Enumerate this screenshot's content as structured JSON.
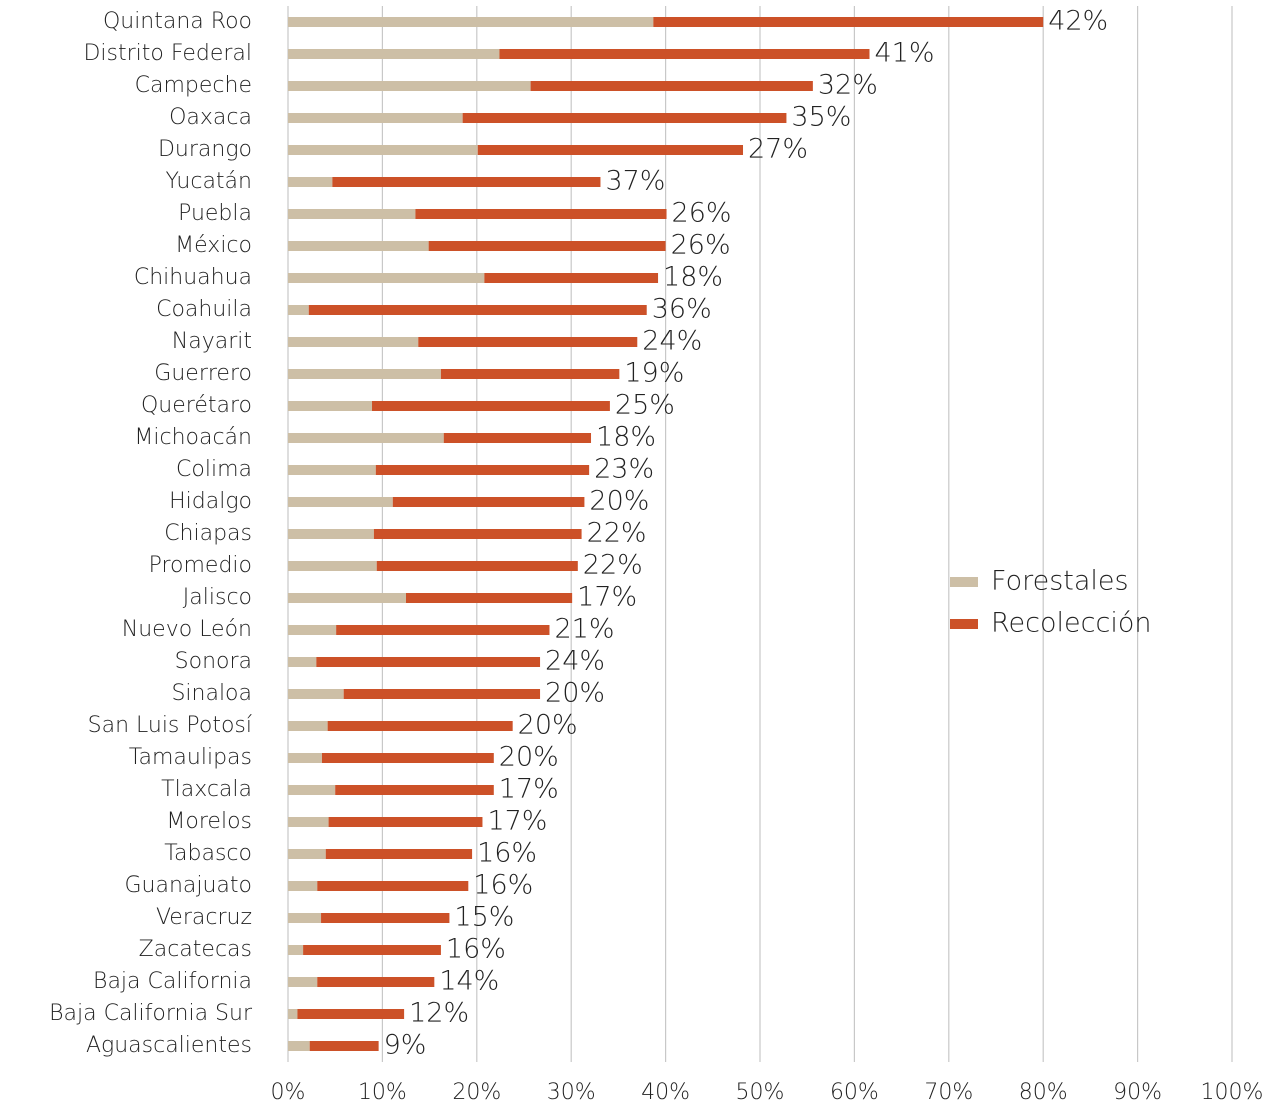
{
  "chart_data": {
    "type": "stacked-barh",
    "categories": [
      "Quintana Roo",
      "Distrito Federal",
      "Campeche",
      "Oaxaca",
      "Durango",
      "Yucatán",
      "Puebla",
      "México",
      "Chihuahua",
      "Coahuila",
      "Nayarit",
      "Guerrero",
      "Querétaro",
      "Michoacán",
      "Colima",
      "Hidalgo",
      "Chiapas",
      "Promedio",
      "Jalisco",
      "Nuevo León",
      "Sonora",
      "Sinaloa",
      "San Luis Potosí",
      "Tamaulipas",
      "Tlaxcala",
      "Morelos",
      "Tabasco",
      "Guanajuato",
      "Veracruz",
      "Zacatecas",
      "Baja California",
      "Baja California Sur",
      "Aguascalientes"
    ],
    "series": [
      {
        "name": "Forestales",
        "color": "#cdbfa6",
        "values": [
          38.7,
          22.4,
          25.7,
          18.5,
          20.1,
          4.7,
          13.5,
          14.9,
          20.8,
          2.2,
          13.8,
          16.2,
          8.9,
          16.5,
          9.3,
          11.1,
          9.1,
          9.4,
          12.5,
          5.1,
          3.0,
          5.9,
          4.2,
          3.6,
          5.0,
          4.3,
          4.0,
          3.1,
          3.5,
          1.6,
          3.1,
          1.0,
          2.3
        ]
      },
      {
        "name": "Recolección",
        "color": "#cc5128",
        "values": [
          41.3,
          39.2,
          29.9,
          34.3,
          28.1,
          28.4,
          26.6,
          25.1,
          18.4,
          35.8,
          23.2,
          18.9,
          25.2,
          15.6,
          22.6,
          20.3,
          22.0,
          21.3,
          17.6,
          22.6,
          23.7,
          20.8,
          19.6,
          18.2,
          16.8,
          16.3,
          15.5,
          16.0,
          13.6,
          14.6,
          12.4,
          11.3,
          7.3
        ]
      }
    ],
    "annotations": [
      "42%",
      "41%",
      "32%",
      "35%",
      "27%",
      "37%",
      "26%",
      "26%",
      "18%",
      "36%",
      "24%",
      "19%",
      "25%",
      "18%",
      "23%",
      "20%",
      "22%",
      "22%",
      "17%",
      "21%",
      "24%",
      "20%",
      "20%",
      "20%",
      "17%",
      "17%",
      "16%",
      "16%",
      "15%",
      "16%",
      "14%",
      "12%",
      "9%"
    ],
    "xlim": [
      0,
      100
    ],
    "xticks": [
      {
        "value": 0,
        "label": "0%"
      },
      {
        "value": 10,
        "label": "10%"
      },
      {
        "value": 20,
        "label": "20%"
      },
      {
        "value": 30,
        "label": "30%"
      },
      {
        "value": 40,
        "label": "40%"
      },
      {
        "value": 50,
        "label": "50%"
      },
      {
        "value": 60,
        "label": "60%"
      },
      {
        "value": 70,
        "label": "70%"
      },
      {
        "value": 80,
        "label": "80%"
      },
      {
        "value": 90,
        "label": "90%"
      },
      {
        "value": 100,
        "label": "100%"
      }
    ],
    "grid": true,
    "legend_position": "right"
  }
}
